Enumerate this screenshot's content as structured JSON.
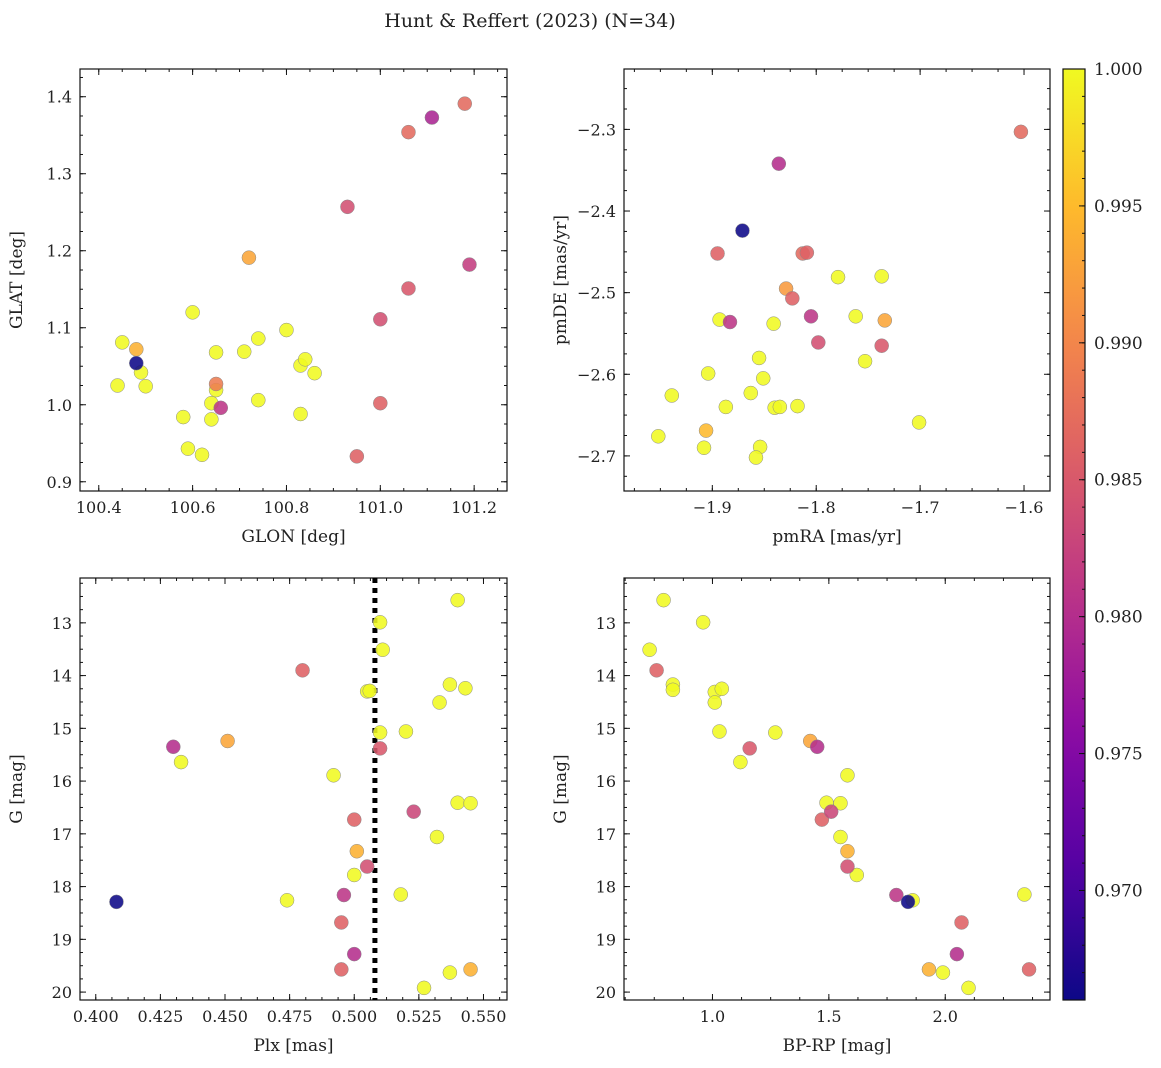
{
  "title": "Hunt & Reffert (2023) (N=34)",
  "colorbar": {
    "vmin": 0.966,
    "vmax": 1.0,
    "ticks": [
      0.97,
      0.975,
      0.98,
      0.985,
      0.99,
      0.995,
      1.0
    ],
    "tick_labels": [
      "0.970",
      "0.975",
      "0.980",
      "0.985",
      "0.990",
      "0.995",
      "1.000"
    ],
    "colormap": "plasma"
  },
  "chart_data": [
    {
      "type": "scatter",
      "xlabel": "GLON [deg]",
      "ylabel": "GLAT [deg]",
      "xlim": [
        100.36,
        101.27
      ],
      "ylim": [
        0.888,
        1.436
      ],
      "y_inverted": false,
      "xticks": [
        100.4,
        100.6,
        100.8,
        101.0,
        101.2
      ],
      "xtick_labels": [
        "100.4",
        "100.6",
        "100.8",
        "101.0",
        "101.2"
      ],
      "yticks": [
        0.9,
        1.0,
        1.1,
        1.2,
        1.3,
        1.4
      ],
      "ytick_labels": [
        "0.9",
        "1.0",
        "1.1",
        "1.2",
        "1.3",
        "1.4"
      ],
      "points": [
        {
          "x": 100.48,
          "y": 1.054,
          "c": 0.966
        },
        {
          "x": 100.45,
          "y": 1.081,
          "c": 1.0
        },
        {
          "x": 100.48,
          "y": 1.072,
          "c": 0.994
        },
        {
          "x": 100.44,
          "y": 1.025,
          "c": 1.0
        },
        {
          "x": 100.49,
          "y": 1.042,
          "c": 1.0
        },
        {
          "x": 100.5,
          "y": 1.024,
          "c": 1.0
        },
        {
          "x": 100.58,
          "y": 0.984,
          "c": 1.0
        },
        {
          "x": 100.59,
          "y": 0.943,
          "c": 1.0
        },
        {
          "x": 100.6,
          "y": 1.12,
          "c": 1.0
        },
        {
          "x": 100.62,
          "y": 0.935,
          "c": 1.0
        },
        {
          "x": 100.64,
          "y": 1.002,
          "c": 1.0
        },
        {
          "x": 100.64,
          "y": 0.981,
          "c": 1.0
        },
        {
          "x": 100.65,
          "y": 1.027,
          "c": 0.989
        },
        {
          "x": 100.65,
          "y": 1.068,
          "c": 1.0
        },
        {
          "x": 100.65,
          "y": 1.019,
          "c": 1.0
        },
        {
          "x": 100.66,
          "y": 0.996,
          "c": 0.981
        },
        {
          "x": 100.71,
          "y": 1.069,
          "c": 1.0
        },
        {
          "x": 100.72,
          "y": 1.191,
          "c": 0.993
        },
        {
          "x": 100.74,
          "y": 1.086,
          "c": 1.0
        },
        {
          "x": 100.74,
          "y": 1.006,
          "c": 1.0
        },
        {
          "x": 100.8,
          "y": 1.097,
          "c": 1.0
        },
        {
          "x": 100.83,
          "y": 0.988,
          "c": 1.0
        },
        {
          "x": 100.83,
          "y": 1.051,
          "c": 1.0
        },
        {
          "x": 100.84,
          "y": 1.059,
          "c": 1.0
        },
        {
          "x": 100.86,
          "y": 1.041,
          "c": 1.0
        },
        {
          "x": 100.93,
          "y": 1.257,
          "c": 0.984
        },
        {
          "x": 100.95,
          "y": 0.933,
          "c": 0.986
        },
        {
          "x": 101.0,
          "y": 1.111,
          "c": 0.984
        },
        {
          "x": 101.0,
          "y": 1.002,
          "c": 0.986
        },
        {
          "x": 101.06,
          "y": 1.354,
          "c": 0.987
        },
        {
          "x": 101.06,
          "y": 1.151,
          "c": 0.985
        },
        {
          "x": 101.11,
          "y": 1.373,
          "c": 0.979
        },
        {
          "x": 101.18,
          "y": 1.391,
          "c": 0.987
        },
        {
          "x": 101.19,
          "y": 1.182,
          "c": 0.982
        }
      ]
    },
    {
      "type": "scatter",
      "xlabel": "pmRA [mas/yr]",
      "ylabel": "pmDE [mas/yr]",
      "xlim": [
        -1.985,
        -1.575
      ],
      "ylim": [
        -2.743,
        -2.226
      ],
      "y_inverted": false,
      "xticks": [
        -1.9,
        -1.8,
        -1.7,
        -1.6
      ],
      "xtick_labels": [
        "−1.9",
        "−1.8",
        "−1.7",
        "−1.6"
      ],
      "yticks": [
        -2.7,
        -2.6,
        -2.5,
        -2.4,
        -2.3
      ],
      "ytick_labels": [
        "−2.7",
        "−2.6",
        "−2.5",
        "−2.4",
        "−2.3"
      ],
      "points": [
        {
          "x": -1.603,
          "y": -2.303,
          "c": 0.987
        },
        {
          "x": -1.836,
          "y": -2.342,
          "c": 0.98
        },
        {
          "x": -1.871,
          "y": -2.424,
          "c": 0.966
        },
        {
          "x": -1.895,
          "y": -2.452,
          "c": 0.986
        },
        {
          "x": -1.813,
          "y": -2.452,
          "c": 0.987
        },
        {
          "x": -1.809,
          "y": -2.451,
          "c": 0.986
        },
        {
          "x": -1.829,
          "y": -2.495,
          "c": 0.992
        },
        {
          "x": -1.779,
          "y": -2.481,
          "c": 1.0
        },
        {
          "x": -1.737,
          "y": -2.48,
          "c": 1.0
        },
        {
          "x": -1.823,
          "y": -2.507,
          "c": 0.986
        },
        {
          "x": -1.893,
          "y": -2.533,
          "c": 1.0
        },
        {
          "x": -1.883,
          "y": -2.536,
          "c": 0.981
        },
        {
          "x": -1.805,
          "y": -2.529,
          "c": 0.981
        },
        {
          "x": -1.762,
          "y": -2.529,
          "c": 1.0
        },
        {
          "x": -1.734,
          "y": -2.534,
          "c": 0.993
        },
        {
          "x": -1.841,
          "y": -2.538,
          "c": 1.0
        },
        {
          "x": -1.798,
          "y": -2.561,
          "c": 0.984
        },
        {
          "x": -1.737,
          "y": -2.565,
          "c": 0.985
        },
        {
          "x": -1.855,
          "y": -2.58,
          "c": 1.0
        },
        {
          "x": -1.753,
          "y": -2.584,
          "c": 1.0
        },
        {
          "x": -1.904,
          "y": -2.599,
          "c": 1.0
        },
        {
          "x": -1.851,
          "y": -2.605,
          "c": 1.0
        },
        {
          "x": -1.863,
          "y": -2.623,
          "c": 1.0
        },
        {
          "x": -1.939,
          "y": -2.626,
          "c": 1.0
        },
        {
          "x": -1.887,
          "y": -2.64,
          "c": 1.0
        },
        {
          "x": -1.84,
          "y": -2.641,
          "c": 1.0
        },
        {
          "x": -1.835,
          "y": -2.64,
          "c": 1.0
        },
        {
          "x": -1.818,
          "y": -2.639,
          "c": 1.0
        },
        {
          "x": -1.701,
          "y": -2.659,
          "c": 1.0
        },
        {
          "x": -1.906,
          "y": -2.669,
          "c": 0.995
        },
        {
          "x": -1.952,
          "y": -2.676,
          "c": 1.0
        },
        {
          "x": -1.908,
          "y": -2.69,
          "c": 1.0
        },
        {
          "x": -1.854,
          "y": -2.689,
          "c": 1.0
        },
        {
          "x": -1.858,
          "y": -2.702,
          "c": 1.0
        }
      ]
    },
    {
      "type": "scatter",
      "xlabel": "Plx [mas]",
      "ylabel": "G [mag]",
      "xlim": [
        0.3939,
        0.5591
      ],
      "ylim": [
        20.15,
        12.15
      ],
      "y_inverted": true,
      "vline": {
        "x": 0.508,
        "style": "dotted",
        "color": "#000000"
      },
      "xticks": [
        0.4,
        0.425,
        0.45,
        0.475,
        0.5,
        0.525,
        0.55
      ],
      "xtick_labels": [
        "0.400",
        "0.425",
        "0.450",
        "0.475",
        "0.500",
        "0.525",
        "0.550"
      ],
      "yticks": [
        13,
        14,
        15,
        16,
        17,
        18,
        19,
        20
      ],
      "ytick_labels": [
        "13",
        "14",
        "15",
        "16",
        "17",
        "18",
        "19",
        "20"
      ],
      "points": [
        {
          "x": 0.54,
          "y": 12.57,
          "c": 1.0
        },
        {
          "x": 0.51,
          "y": 12.99,
          "c": 1.0
        },
        {
          "x": 0.511,
          "y": 13.51,
          "c": 1.0
        },
        {
          "x": 0.48,
          "y": 13.9,
          "c": 0.986
        },
        {
          "x": 0.537,
          "y": 14.17,
          "c": 1.0
        },
        {
          "x": 0.543,
          "y": 14.24,
          "c": 1.0
        },
        {
          "x": 0.505,
          "y": 14.3,
          "c": 1.0
        },
        {
          "x": 0.506,
          "y": 14.29,
          "c": 1.0
        },
        {
          "x": 0.533,
          "y": 14.51,
          "c": 1.0
        },
        {
          "x": 0.52,
          "y": 15.06,
          "c": 1.0
        },
        {
          "x": 0.51,
          "y": 15.08,
          "c": 1.0
        },
        {
          "x": 0.451,
          "y": 15.24,
          "c": 0.993
        },
        {
          "x": 0.43,
          "y": 15.35,
          "c": 0.98
        },
        {
          "x": 0.51,
          "y": 15.38,
          "c": 0.985
        },
        {
          "x": 0.433,
          "y": 15.64,
          "c": 1.0
        },
        {
          "x": 0.492,
          "y": 15.89,
          "c": 1.0
        },
        {
          "x": 0.54,
          "y": 16.41,
          "c": 1.0
        },
        {
          "x": 0.545,
          "y": 16.42,
          "c": 1.0
        },
        {
          "x": 0.523,
          "y": 16.58,
          "c": 0.983
        },
        {
          "x": 0.5,
          "y": 16.73,
          "c": 0.986
        },
        {
          "x": 0.532,
          "y": 17.06,
          "c": 1.0
        },
        {
          "x": 0.501,
          "y": 17.33,
          "c": 0.994
        },
        {
          "x": 0.505,
          "y": 17.62,
          "c": 0.984
        },
        {
          "x": 0.5,
          "y": 17.78,
          "c": 1.0
        },
        {
          "x": 0.496,
          "y": 18.16,
          "c": 0.981
        },
        {
          "x": 0.518,
          "y": 18.15,
          "c": 1.0
        },
        {
          "x": 0.474,
          "y": 18.26,
          "c": 1.0
        },
        {
          "x": 0.408,
          "y": 18.29,
          "c": 0.966
        },
        {
          "x": 0.495,
          "y": 18.68,
          "c": 0.986
        },
        {
          "x": 0.5,
          "y": 19.28,
          "c": 0.98
        },
        {
          "x": 0.495,
          "y": 19.57,
          "c": 0.986
        },
        {
          "x": 0.537,
          "y": 19.63,
          "c": 1.0
        },
        {
          "x": 0.545,
          "y": 19.57,
          "c": 0.994
        },
        {
          "x": 0.527,
          "y": 19.92,
          "c": 1.0
        }
      ]
    },
    {
      "type": "scatter",
      "xlabel": "BP-RP [mag]",
      "ylabel": "G [mag]",
      "xlim": [
        0.62,
        2.45
      ],
      "ylim": [
        20.15,
        12.15
      ],
      "y_inverted": true,
      "xticks": [
        1.0,
        1.5,
        2.0
      ],
      "xtick_labels": [
        "1.0",
        "1.5",
        "2.0"
      ],
      "yticks": [
        13,
        14,
        15,
        16,
        17,
        18,
        19,
        20
      ],
      "ytick_labels": [
        "13",
        "14",
        "15",
        "16",
        "17",
        "18",
        "19",
        "20"
      ],
      "points": [
        {
          "x": 0.79,
          "y": 12.57,
          "c": 1.0
        },
        {
          "x": 0.96,
          "y": 12.99,
          "c": 1.0
        },
        {
          "x": 0.73,
          "y": 13.51,
          "c": 1.0
        },
        {
          "x": 0.76,
          "y": 13.9,
          "c": 0.986
        },
        {
          "x": 0.83,
          "y": 14.17,
          "c": 1.0
        },
        {
          "x": 0.83,
          "y": 14.27,
          "c": 1.0
        },
        {
          "x": 1.01,
          "y": 14.31,
          "c": 1.0
        },
        {
          "x": 1.04,
          "y": 14.25,
          "c": 1.0
        },
        {
          "x": 1.01,
          "y": 14.51,
          "c": 1.0
        },
        {
          "x": 1.03,
          "y": 15.06,
          "c": 1.0
        },
        {
          "x": 1.27,
          "y": 15.08,
          "c": 1.0
        },
        {
          "x": 1.42,
          "y": 15.24,
          "c": 0.993
        },
        {
          "x": 1.45,
          "y": 15.35,
          "c": 0.98
        },
        {
          "x": 1.16,
          "y": 15.38,
          "c": 0.985
        },
        {
          "x": 1.12,
          "y": 15.64,
          "c": 1.0
        },
        {
          "x": 1.58,
          "y": 15.89,
          "c": 1.0
        },
        {
          "x": 1.49,
          "y": 16.41,
          "c": 1.0
        },
        {
          "x": 1.55,
          "y": 16.42,
          "c": 1.0
        },
        {
          "x": 1.51,
          "y": 16.58,
          "c": 0.983
        },
        {
          "x": 1.47,
          "y": 16.73,
          "c": 0.986
        },
        {
          "x": 1.55,
          "y": 17.06,
          "c": 1.0
        },
        {
          "x": 1.58,
          "y": 17.33,
          "c": 0.994
        },
        {
          "x": 1.58,
          "y": 17.62,
          "c": 0.984
        },
        {
          "x": 1.62,
          "y": 17.78,
          "c": 1.0
        },
        {
          "x": 1.79,
          "y": 18.16,
          "c": 0.981
        },
        {
          "x": 2.34,
          "y": 18.15,
          "c": 1.0
        },
        {
          "x": 1.86,
          "y": 18.26,
          "c": 1.0
        },
        {
          "x": 1.84,
          "y": 18.29,
          "c": 0.966
        },
        {
          "x": 2.07,
          "y": 18.68,
          "c": 0.986
        },
        {
          "x": 2.05,
          "y": 19.28,
          "c": 0.98
        },
        {
          "x": 2.36,
          "y": 19.57,
          "c": 0.986
        },
        {
          "x": 1.99,
          "y": 19.63,
          "c": 1.0
        },
        {
          "x": 1.93,
          "y": 19.57,
          "c": 0.994
        },
        {
          "x": 2.1,
          "y": 19.92,
          "c": 1.0
        }
      ]
    }
  ]
}
